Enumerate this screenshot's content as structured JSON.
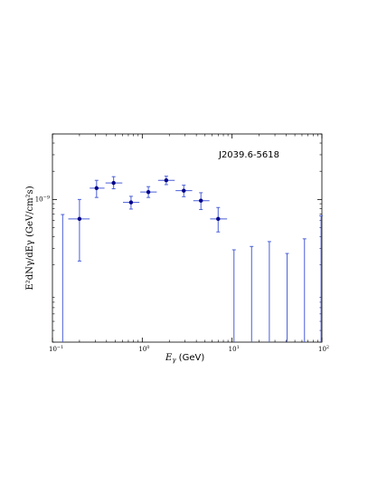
{
  "chart_data": {
    "type": "scatter",
    "annotation": "J2039.6-5618",
    "xlabel_main": "E",
    "xlabel_sub": "γ",
    "xlabel_unit": " (GeV)",
    "ylabel_text": "E²dNγ/dEγ (GeV/cm²s)",
    "xscale": "log",
    "yscale": "log",
    "xlim": [
      0.1,
      100
    ],
    "ylim": [
      3e-11,
      5e-09
    ],
    "x_ticks": [
      {
        "value": 0.1,
        "base": "10",
        "exp": "−1"
      },
      {
        "value": 1,
        "base": "10",
        "exp": "0"
      },
      {
        "value": 10,
        "base": "10",
        "exp": "1"
      },
      {
        "value": 100,
        "base": "10",
        "exp": "2"
      }
    ],
    "y_ticks": [
      {
        "value": 1e-09,
        "base": "10",
        "exp": "−9"
      }
    ],
    "grid": false,
    "marker_color": "#00008b",
    "errorbar_color": "#4a5fd8",
    "points": [
      {
        "x": 0.2,
        "y": 6.2e-10,
        "xlo": 0.15,
        "xhi": 0.26,
        "ylo": 2.2e-10,
        "yhi": 1e-09
      },
      {
        "x": 0.31,
        "y": 1.32e-09,
        "xlo": 0.26,
        "xhi": 0.38,
        "ylo": 1.05e-09,
        "yhi": 1.6e-09
      },
      {
        "x": 0.48,
        "y": 1.5e-09,
        "xlo": 0.39,
        "xhi": 0.6,
        "ylo": 1.3e-09,
        "yhi": 1.75e-09
      },
      {
        "x": 0.75,
        "y": 9.3e-10,
        "xlo": 0.61,
        "xhi": 0.93,
        "ylo": 7.9e-10,
        "yhi": 1.08e-09
      },
      {
        "x": 1.17,
        "y": 1.2e-09,
        "xlo": 0.95,
        "xhi": 1.45,
        "ylo": 1.05e-09,
        "yhi": 1.37e-09
      },
      {
        "x": 1.85,
        "y": 1.6e-09,
        "xlo": 1.5,
        "xhi": 2.3,
        "ylo": 1.44e-09,
        "yhi": 1.77e-09
      },
      {
        "x": 2.9,
        "y": 1.24e-09,
        "xlo": 2.35,
        "xhi": 3.6,
        "ylo": 1.07e-09,
        "yhi": 1.42e-09
      },
      {
        "x": 4.5,
        "y": 9.7e-10,
        "xlo": 3.7,
        "xhi": 5.6,
        "ylo": 7.8e-10,
        "yhi": 1.18e-09
      },
      {
        "x": 7.0,
        "y": 6.2e-10,
        "xlo": 5.7,
        "xhi": 8.8,
        "ylo": 4.5e-10,
        "yhi": 8.2e-10
      }
    ],
    "upper_limits": [
      {
        "x": 0.13,
        "y": 6.9e-10
      },
      {
        "x": 10.5,
        "y": 2.9e-10
      },
      {
        "x": 16.5,
        "y": 3.15e-10
      },
      {
        "x": 26,
        "y": 3.55e-10
      },
      {
        "x": 41,
        "y": 2.65e-10
      },
      {
        "x": 64,
        "y": 3.8e-10
      },
      {
        "x": 98,
        "y": 6.7e-10
      }
    ]
  }
}
